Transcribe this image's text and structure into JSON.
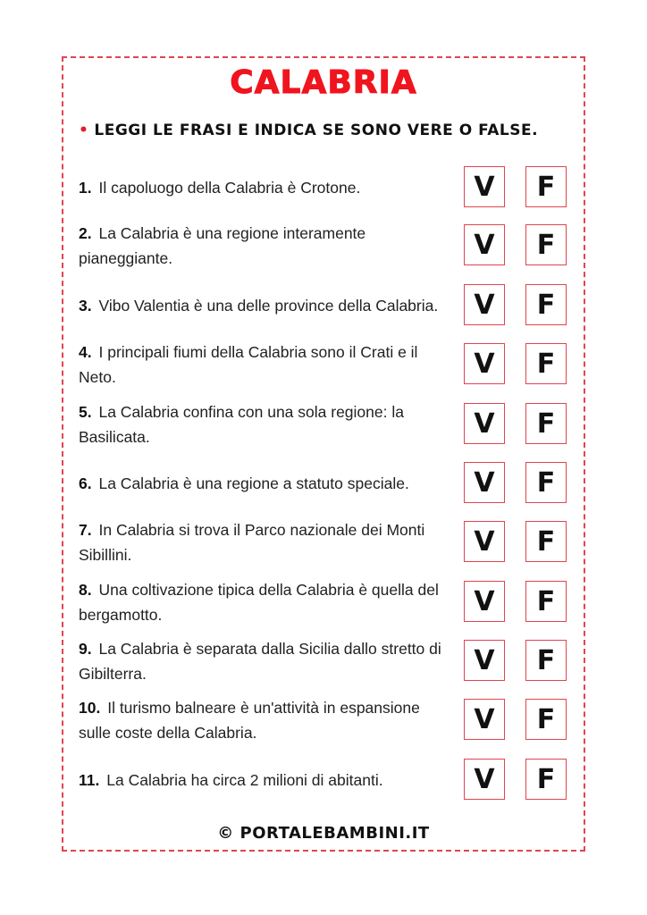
{
  "title": "CALABRIA",
  "instruction": "LEGGI LE FRASI E INDICA SE SONO VERE O FALSE.",
  "true_label": "V",
  "false_label": "F",
  "questions": [
    {
      "num": "1.",
      "text": "Il capoluogo della Calabria è Crotone."
    },
    {
      "num": "2.",
      "text": "La Calabria è una regione interamente pianeggiante."
    },
    {
      "num": "3.",
      "text": "Vibo Valentia è una delle province della Calabria."
    },
    {
      "num": "4.",
      "text": "I principali fiumi della Calabria sono il Crati e il Neto."
    },
    {
      "num": "5.",
      "text": "La Calabria confina con una sola regione: la Basilicata."
    },
    {
      "num": "6.",
      "text": "La Calabria è una regione a statuto speciale."
    },
    {
      "num": "7.",
      "text": "In Calabria si trova il Parco nazionale dei Monti Sibillini."
    },
    {
      "num": "8.",
      "text": "Una coltivazione tipica della Calabria è quella del bergamotto."
    },
    {
      "num": "9.",
      "text": "La Calabria è separata dalla Sicilia dallo stretto di Gibilterra."
    },
    {
      "num": "10.",
      "text": "Il turismo balneare è un'attività in espansione sulle coste della Calabria."
    },
    {
      "num": "11.",
      "text": "La Calabria ha circa 2 milioni di abitanti."
    }
  ],
  "footer": "© PORTALEBAMBINI.IT",
  "colors": {
    "accent": "#f0141e",
    "border": "#e0454f"
  }
}
